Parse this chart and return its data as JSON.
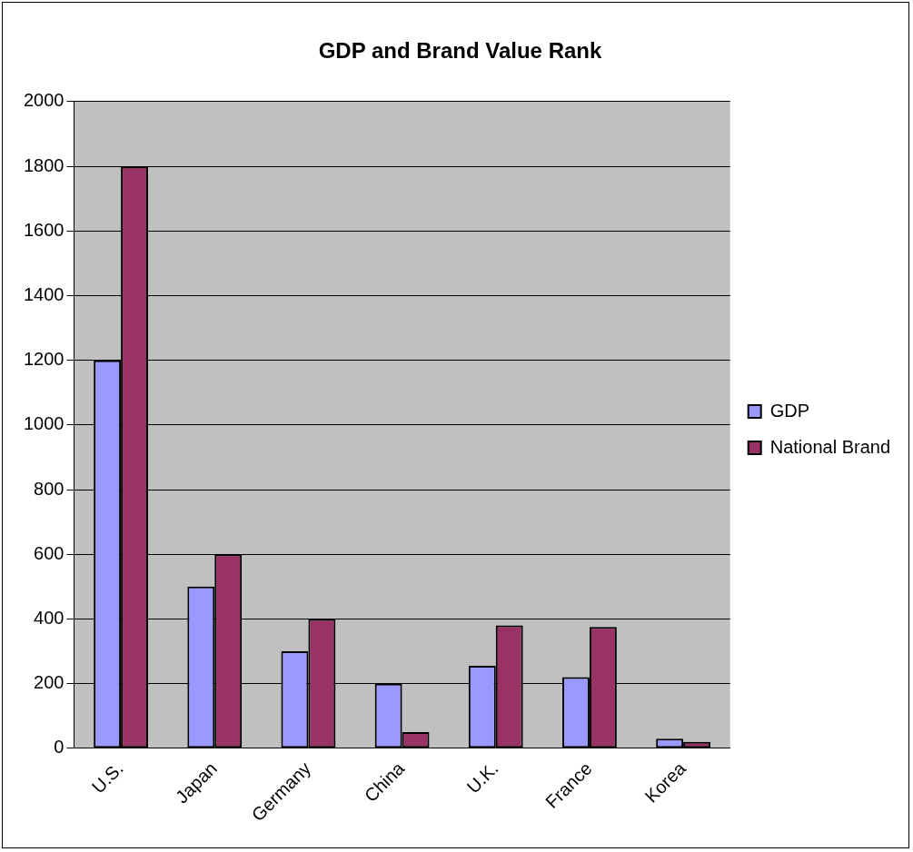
{
  "chart_data": {
    "type": "bar",
    "title": "GDP and Brand Value Rank",
    "categories": [
      "U.S.",
      "Japan",
      "Germany",
      "China",
      "U.K.",
      "France",
      "Korea"
    ],
    "series": [
      {
        "name": "GDP",
        "color": "#9999ff",
        "values": [
          1200,
          500,
          300,
          200,
          255,
          220,
          30
        ]
      },
      {
        "name": "National Brand",
        "color": "#993366",
        "values": [
          1800,
          600,
          400,
          50,
          380,
          375,
          20
        ]
      }
    ],
    "ylim": [
      0,
      2000
    ],
    "yticks": [
      0,
      200,
      400,
      600,
      800,
      1000,
      1200,
      1400,
      1600,
      1800,
      2000
    ],
    "grid": "y",
    "legend": "right"
  }
}
